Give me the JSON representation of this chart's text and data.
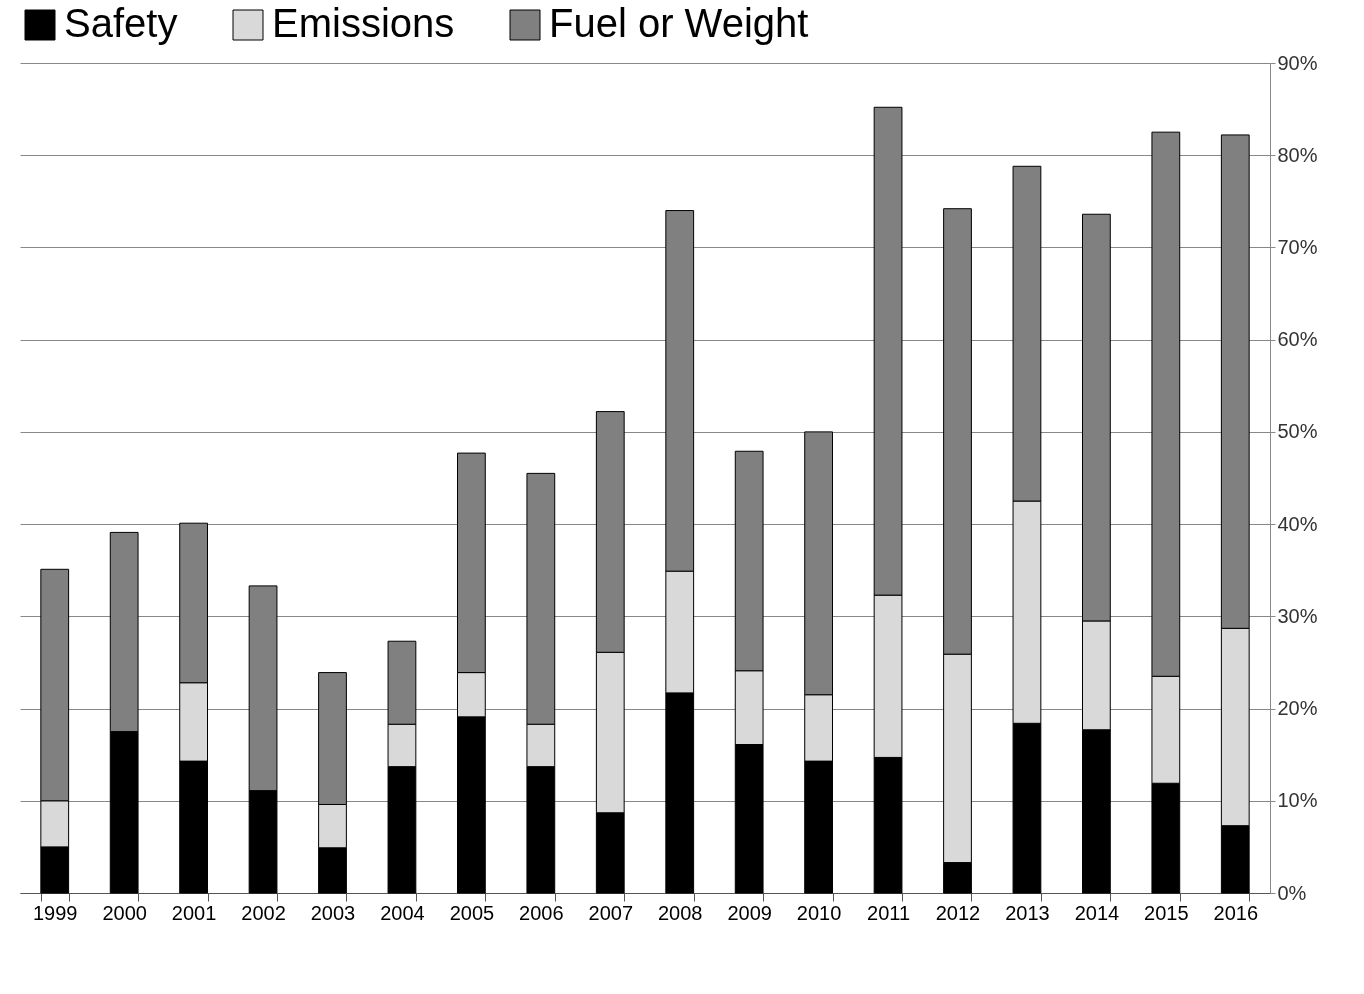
{
  "chart_data": {
    "type": "bar",
    "stacked": true,
    "categories": [
      "1999",
      "2000",
      "2001",
      "2002",
      "2003",
      "2004",
      "2005",
      "2006",
      "2007",
      "2008",
      "2009",
      "2010",
      "2011",
      "2012",
      "2013",
      "2014",
      "2015",
      "2016"
    ],
    "series": [
      {
        "name": "Safety",
        "color": "#000000",
        "values": [
          5.0,
          17.5,
          14.3,
          11.1,
          4.9,
          13.7,
          19.1,
          13.7,
          8.7,
          21.7,
          16.1,
          14.3,
          14.7,
          3.3,
          18.4,
          17.7,
          11.9,
          7.3
        ]
      },
      {
        "name": "Emissions",
        "color": "#d9d9d9",
        "values": [
          5.0,
          0,
          8.5,
          0,
          4.7,
          4.6,
          4.8,
          4.6,
          17.4,
          13.2,
          8.0,
          7.2,
          17.6,
          22.6,
          24.1,
          11.8,
          11.6,
          21.4
        ]
      },
      {
        "name": "Fuel or Weight",
        "color": "#808080",
        "values": [
          25.1,
          21.6,
          17.3,
          22.2,
          14.3,
          9.0,
          23.8,
          27.2,
          26.1,
          39.1,
          23.8,
          28.5,
          52.9,
          48.3,
          36.3,
          44.1,
          59.0,
          53.5
        ]
      }
    ],
    "ylim": [
      0,
      90
    ],
    "yticks": [
      {
        "value": 0,
        "label": "0%"
      },
      {
        "value": 10,
        "label": "10%"
      },
      {
        "value": 20,
        "label": "20%"
      },
      {
        "value": 30,
        "label": "30%"
      },
      {
        "value": 40,
        "label": "40%"
      },
      {
        "value": 50,
        "label": "50%"
      },
      {
        "value": 60,
        "label": "60%"
      },
      {
        "value": 70,
        "label": "70%"
      },
      {
        "value": 80,
        "label": "80%"
      },
      {
        "value": 90,
        "label": "90%"
      }
    ],
    "grid": "y",
    "legend": "top"
  }
}
